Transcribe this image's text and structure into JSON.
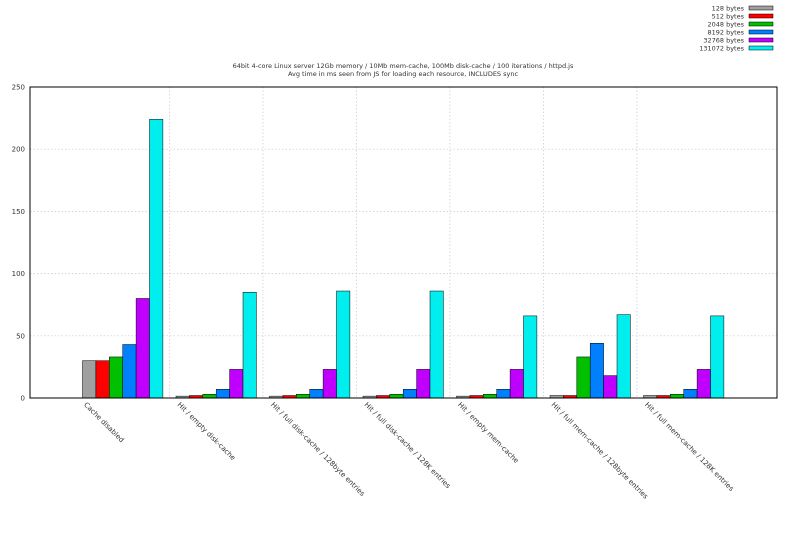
{
  "chart_data": {
    "type": "bar",
    "title": "64bit 4-core Linux server 12Gb memory / 10Mb mem-cache, 100Mb disk-cache / 100 iterations / httpd.js",
    "subtitle": "Avg time in ms seen from JS for loading each resource, INCLUDES sync",
    "xlabel": "",
    "ylabel": "",
    "ylim": [
      0,
      250
    ],
    "yticks": [
      "0",
      "50",
      "100",
      "150",
      "200",
      "250"
    ],
    "grid": true,
    "legend_position": "top-right",
    "categories": [
      "Cache disabled",
      "Hit / empty disk-cache",
      "Hit / full disk-cache / 128byte entries",
      "Hit / full disk-cache / 128K entries",
      "Hit / empty mem-cache",
      "Hit / full mem-cache / 128byte entries",
      "Hit / full mem-cache / 128K entries"
    ],
    "series": [
      {
        "name": "128 bytes",
        "color": "#a0a0a0",
        "values": [
          30,
          1.5,
          1.5,
          1.5,
          1.5,
          2,
          2
        ]
      },
      {
        "name": "512 bytes",
        "color": "#ff0000",
        "values": [
          30,
          2,
          2,
          2,
          2,
          2,
          2
        ]
      },
      {
        "name": "2048 bytes",
        "color": "#00c000",
        "values": [
          33,
          3,
          3,
          3,
          3,
          33,
          3
        ]
      },
      {
        "name": "8192 bytes",
        "color": "#0080ff",
        "values": [
          43,
          7,
          7,
          7,
          7,
          44,
          7
        ]
      },
      {
        "name": "32768 bytes",
        "color": "#c000ff",
        "values": [
          80,
          23,
          23,
          23,
          23,
          18,
          23
        ]
      },
      {
        "name": "131072 bytes",
        "color": "#00eeee",
        "values": [
          224,
          85,
          86,
          86,
          66,
          67,
          66
        ]
      }
    ]
  }
}
